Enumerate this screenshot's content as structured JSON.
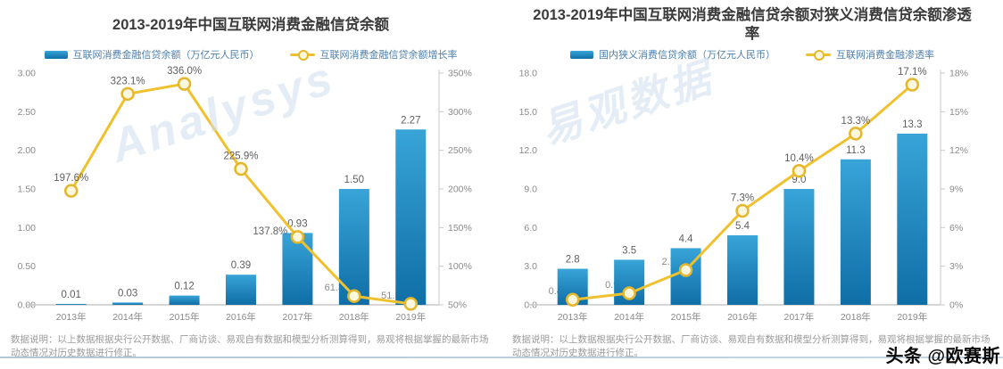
{
  "byline": "头条 @欧赛斯",
  "watermarks": {
    "left": "Analysys",
    "right": "易观数据"
  },
  "note": "数据说明：以上数据根据央行公开数据、厂商访谈、易观自有数据和模型分析测算得到，易观将根据掌握的最新市场动态情况对历史数据进行修正。",
  "colors": {
    "bar_top": "#38a4d8",
    "bar_bottom": "#0f6ea6",
    "line": "#f0c12f",
    "marker_fill": "#fdf7dd",
    "marker_stroke": "#e6b62a",
    "axis": "#c9c9c9",
    "tick_text": "#8a8a8a",
    "data_label": "#5f5f5f",
    "legend_text": "#4d7fae"
  },
  "chart_data": [
    {
      "type": "bar+line",
      "title": "2013-2019年中国互联网消费金融信贷余额",
      "categories": [
        "2013年",
        "2014年",
        "2015年",
        "2016年",
        "2017年",
        "2018年",
        "2019年"
      ],
      "series": [
        {
          "name": "互联网消费金融信贷余额（万亿元人民币）",
          "type": "bar",
          "values": [
            0.01,
            0.03,
            0.12,
            0.39,
            0.93,
            1.5,
            2.27
          ],
          "labels": [
            "0.01",
            "0.03",
            "0.12",
            "0.39",
            "0.93",
            "1.50",
            "2.27"
          ]
        },
        {
          "name": "互联网消费金融信贷余额增长率",
          "type": "line",
          "values": [
            197.6,
            323.1,
            336.0,
            225.9,
            137.8,
            61.3,
            51.3
          ],
          "labels": [
            "197.6%",
            "323.1%",
            "336.0%",
            "225.9%",
            "137.8%",
            "61.3%",
            "51.3%"
          ],
          "label_pos": [
            "above",
            "above",
            "above",
            "above",
            "left",
            "behind",
            "behind"
          ]
        }
      ],
      "left_axis": {
        "min": 0,
        "max": 3,
        "ticks": [
          "3.00",
          "2.50",
          "2.00",
          "1.50",
          "1.00",
          "0.50",
          "0.00"
        ]
      },
      "right_axis": {
        "min": 50,
        "max": 350,
        "ticks": [
          "350%",
          "300%",
          "250%",
          "200%",
          "150%",
          "100%",
          "50%"
        ]
      },
      "legend_position": "top",
      "grid": false
    },
    {
      "type": "bar+line",
      "title": "2013-2019年中国互联网消费金融信贷余额对狭义消费信贷余额渗透率",
      "categories": [
        "2013年",
        "2014年",
        "2015年",
        "2016年",
        "2017年",
        "2018年",
        "2019年"
      ],
      "series": [
        {
          "name": "国内狭义消费信贷余额（万亿元人民币）",
          "type": "bar",
          "values": [
            2.8,
            3.5,
            4.4,
            5.4,
            9.0,
            11.3,
            13.3
          ],
          "labels": [
            "2.8",
            "3.5",
            "4.4",
            "5.4",
            "9.0",
            "11.3",
            "13.3"
          ]
        },
        {
          "name": "互联网消费金融渗透率",
          "type": "line",
          "values": [
            0.4,
            0.9,
            2.7,
            7.3,
            10.4,
            13.3,
            17.1
          ],
          "labels": [
            "0.4%",
            "0.9%",
            "2.7%",
            "7.3%",
            "10.4%",
            "13.3%",
            "17.1%"
          ],
          "label_pos": [
            "behind",
            "behind",
            "behind",
            "above",
            "above",
            "above",
            "above"
          ]
        }
      ],
      "left_axis": {
        "min": 0,
        "max": 18,
        "ticks": [
          "18.0",
          "15.0",
          "12.0",
          "9.0",
          "6.0",
          "3.0",
          "0.0"
        ]
      },
      "right_axis": {
        "min": 0,
        "max": 18,
        "ticks": [
          "18%",
          "15%",
          "12%",
          "9%",
          "6%",
          "3%",
          "0%"
        ]
      },
      "legend_position": "top",
      "grid": false
    }
  ]
}
